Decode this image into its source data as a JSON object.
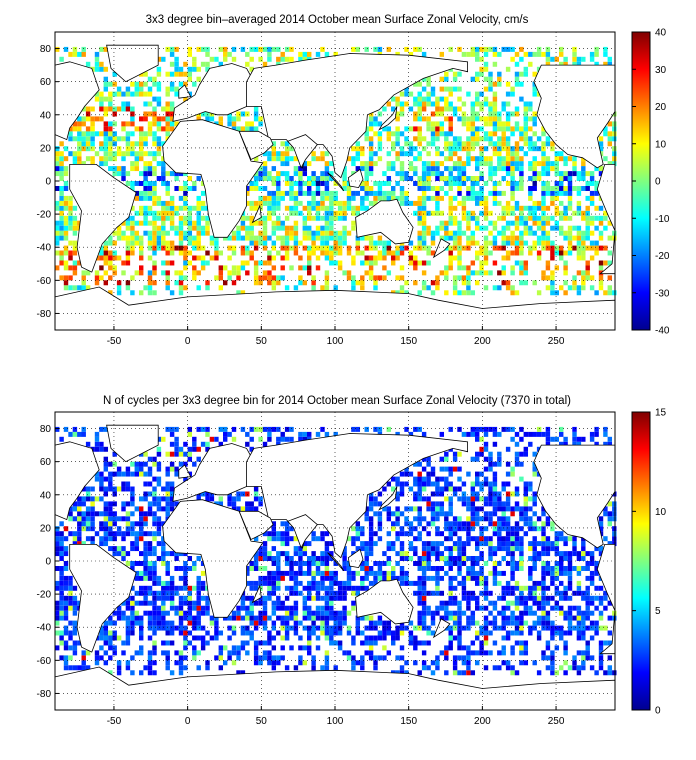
{
  "chart_data": [
    {
      "type": "heatmap",
      "title": "3x3 degree bin–averaged 2014 October mean Surface Zonal Velocity, cm/s",
      "xlabel": "",
      "ylabel": "",
      "xlim": [
        -90,
        290
      ],
      "ylim": [
        -90,
        90
      ],
      "xticks": [
        -50,
        0,
        50,
        100,
        150,
        200,
        250
      ],
      "yticks": [
        80,
        60,
        40,
        20,
        0,
        -20,
        -40,
        -60,
        -80
      ],
      "grid": "dotted",
      "colorbar": {
        "range": [
          -40,
          40
        ],
        "ticks": [
          40,
          30,
          20,
          10,
          0,
          -10,
          -20,
          -30,
          -40
        ],
        "colormap": "jet",
        "placement": "right"
      },
      "bins_note_deg": 3
    },
    {
      "type": "heatmap",
      "title": "N of cycles per 3x3 degree bin for 2014 October mean Surface Zonal Velocity (7370 in total)",
      "xlabel": "",
      "ylabel": "",
      "xlim": [
        -90,
        290
      ],
      "ylim": [
        -90,
        90
      ],
      "xticks": [
        -50,
        0,
        50,
        100,
        150,
        200,
        250
      ],
      "yticks": [
        80,
        60,
        40,
        20,
        0,
        -20,
        -40,
        -60,
        -80
      ],
      "grid": "dotted",
      "colorbar": {
        "range": [
          0,
          15
        ],
        "ticks": [
          15,
          10,
          5,
          0
        ],
        "colormap": "jet",
        "placement": "right"
      },
      "total_cycles": 7370
    }
  ]
}
